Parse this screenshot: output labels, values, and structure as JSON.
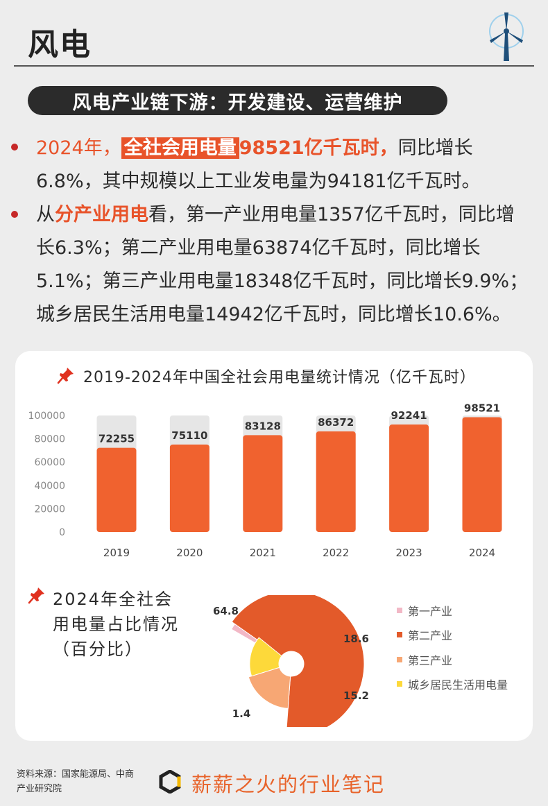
{
  "header": {
    "title": "风电",
    "icon": "wind-turbine-icon"
  },
  "section_pill": "风电产业链下游：开发建设、运营维护",
  "paragraph1": {
    "year": "2024年，",
    "boxed": "全社会用电量",
    "value": "98521亿千瓦时，",
    "rest": "同比增长6.8%，其中规模以上工业发电量为94181亿千瓦时。"
  },
  "paragraph2": {
    "prefix": "从",
    "highlight": "分产业用电",
    "rest": "看，第一产业用电量1357亿千瓦时，同比增长6.3%；第二产业用电量63874亿千瓦时，同比增长5.1%；第三产业用电量18348亿千瓦时，同比增长9.9%；城乡居民生活用电量14942亿千瓦时，同比增长10.6%。"
  },
  "colors": {
    "accent": "#e8532a",
    "bar_orange": "#f0622f",
    "bar_bg": "#e6e6e6",
    "pie_primary": "#e35a2a",
    "pie_secondary": "#f7a774",
    "pie_tertiary": "#fdd93a",
    "pie_first": "#f2b8c6"
  },
  "chart_data": [
    {
      "type": "bar",
      "title": "2019-2024年中国全社会用电量统计情况（亿千瓦时）",
      "categories": [
        "2019",
        "2020",
        "2021",
        "2022",
        "2023",
        "2024"
      ],
      "values": [
        72255,
        75110,
        83128,
        86372,
        92241,
        98521
      ],
      "yticks": [
        "100000",
        "80000",
        "60000",
        "40000",
        "20000",
        "0"
      ],
      "ylim": [
        0,
        100000
      ],
      "grid": false
    },
    {
      "type": "pie",
      "title": "2024年全社会用电量占比情况（百分比）",
      "labels": [
        "第一产业",
        "第二产业",
        "第三产业",
        "城乡居民生活用电量"
      ],
      "values": [
        1.4,
        64.8,
        18.6,
        15.2
      ],
      "legend": "right"
    }
  ],
  "footer": {
    "source": "资料来源：国家能源局、中商产业研究院",
    "brand": "薪薪之火的行业笔记"
  }
}
